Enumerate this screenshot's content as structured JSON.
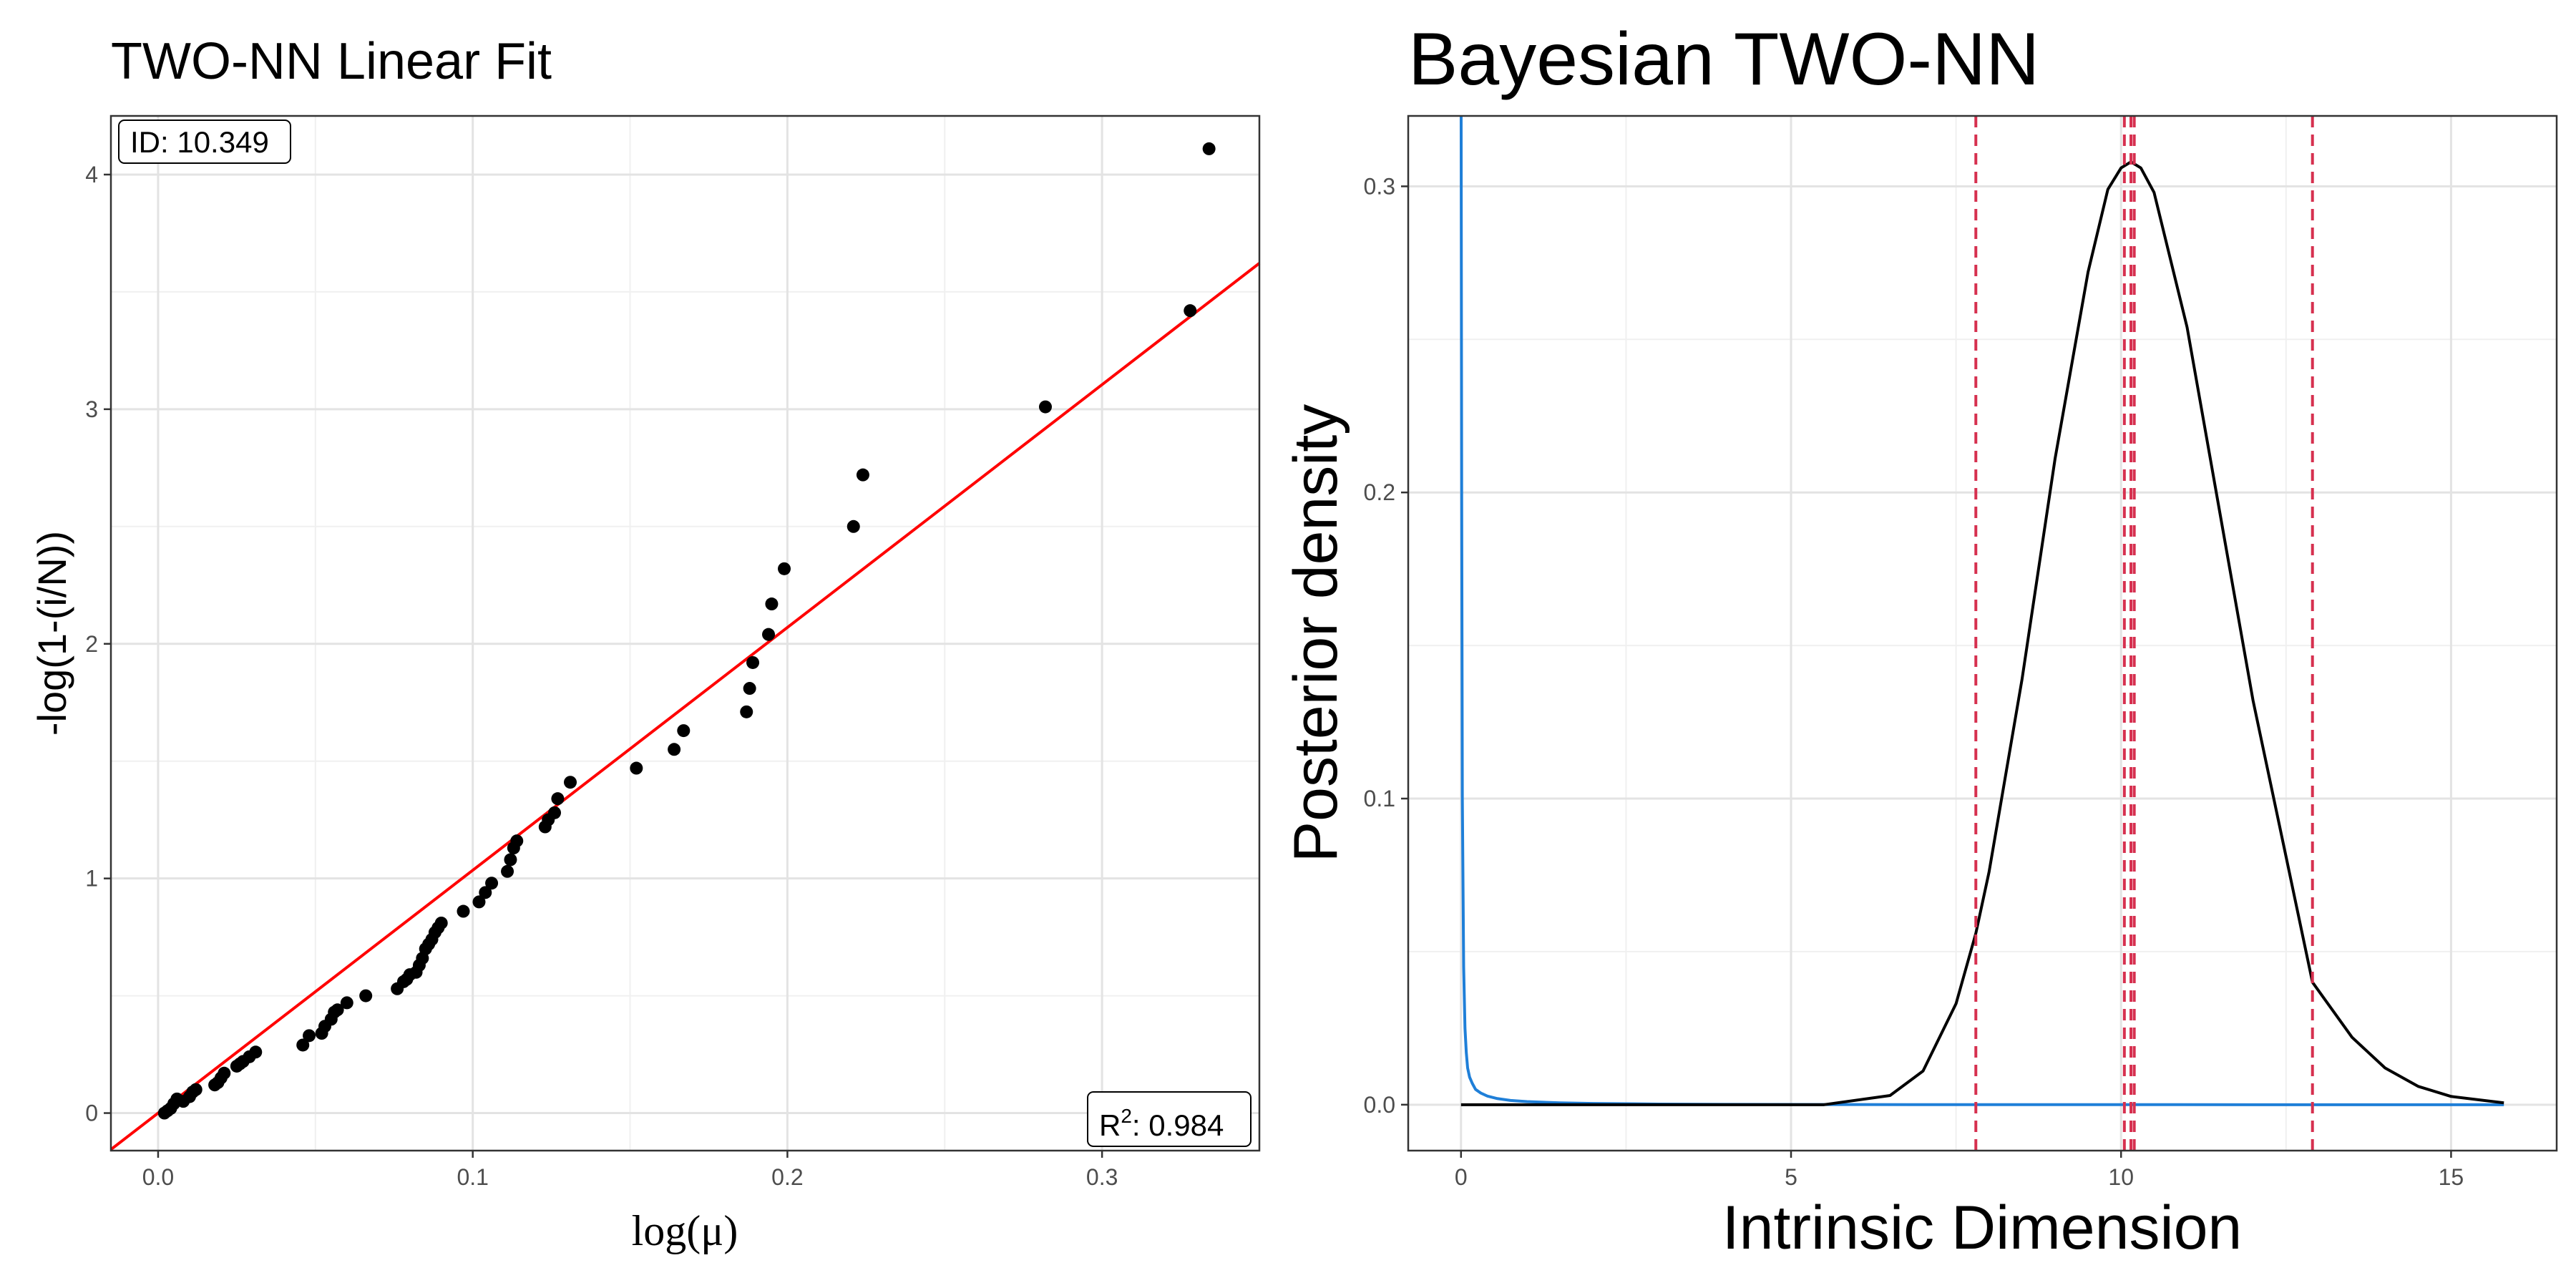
{
  "chart_data": [
    {
      "type": "scatter",
      "title": "TWO-NN Linear Fit",
      "xlabel": "log(μ)",
      "ylabel": "-log(1-(i/N))",
      "xlim": [
        -0.015,
        0.35
      ],
      "ylim": [
        -0.16,
        4.25
      ],
      "xticks": [
        0.0,
        0.1,
        0.2,
        0.3
      ],
      "xtick_labels": [
        "0.0",
        "0.1",
        "0.2",
        "0.3"
      ],
      "yticks": [
        0,
        1,
        2,
        3,
        4
      ],
      "ytick_labels": [
        "0",
        "1",
        "2",
        "3",
        "4"
      ],
      "grid": true,
      "points_color": "#000000",
      "line_color": "#ff0000",
      "fit_line": {
        "slope": 10.349,
        "intercept": 0.0
      },
      "id_label": "ID: 10.349",
      "r2_label_prefix": "R",
      "r2_label_sup": "2",
      "r2_label_value": ": 0.984",
      "points": [
        [
          0.002,
          0.0
        ],
        [
          0.003,
          0.01
        ],
        [
          0.004,
          0.02
        ],
        [
          0.005,
          0.04
        ],
        [
          0.006,
          0.06
        ],
        [
          0.008,
          0.05
        ],
        [
          0.01,
          0.07
        ],
        [
          0.011,
          0.09
        ],
        [
          0.012,
          0.1
        ],
        [
          0.018,
          0.12
        ],
        [
          0.019,
          0.13
        ],
        [
          0.02,
          0.15
        ],
        [
          0.021,
          0.17
        ],
        [
          0.025,
          0.2
        ],
        [
          0.026,
          0.21
        ],
        [
          0.027,
          0.22
        ],
        [
          0.029,
          0.24
        ],
        [
          0.031,
          0.26
        ],
        [
          0.046,
          0.29
        ],
        [
          0.048,
          0.33
        ],
        [
          0.052,
          0.34
        ],
        [
          0.053,
          0.37
        ],
        [
          0.055,
          0.4
        ],
        [
          0.056,
          0.43
        ],
        [
          0.057,
          0.44
        ],
        [
          0.06,
          0.47
        ],
        [
          0.066,
          0.5
        ],
        [
          0.076,
          0.53
        ],
        [
          0.078,
          0.56
        ],
        [
          0.079,
          0.57
        ],
        [
          0.08,
          0.59
        ],
        [
          0.082,
          0.6
        ],
        [
          0.083,
          0.63
        ],
        [
          0.084,
          0.66
        ],
        [
          0.085,
          0.7
        ],
        [
          0.086,
          0.72
        ],
        [
          0.087,
          0.74
        ],
        [
          0.088,
          0.77
        ],
        [
          0.089,
          0.79
        ],
        [
          0.09,
          0.81
        ],
        [
          0.097,
          0.86
        ],
        [
          0.102,
          0.9
        ],
        [
          0.104,
          0.94
        ],
        [
          0.106,
          0.98
        ],
        [
          0.111,
          1.03
        ],
        [
          0.112,
          1.08
        ],
        [
          0.113,
          1.13
        ],
        [
          0.114,
          1.16
        ],
        [
          0.123,
          1.22
        ],
        [
          0.124,
          1.25
        ],
        [
          0.126,
          1.28
        ],
        [
          0.127,
          1.34
        ],
        [
          0.131,
          1.41
        ],
        [
          0.152,
          1.47
        ],
        [
          0.164,
          1.55
        ],
        [
          0.167,
          1.63
        ],
        [
          0.187,
          1.71
        ],
        [
          0.188,
          1.81
        ],
        [
          0.189,
          1.92
        ],
        [
          0.194,
          2.04
        ],
        [
          0.195,
          2.17
        ],
        [
          0.199,
          2.32
        ],
        [
          0.221,
          2.5
        ],
        [
          0.224,
          2.72
        ],
        [
          0.282,
          3.01
        ],
        [
          0.328,
          3.42
        ],
        [
          0.334,
          4.11
        ]
      ]
    },
    {
      "type": "line",
      "title": "Bayesian TWO-NN",
      "xlabel": "Intrinsic Dimension",
      "ylabel": "Posterior density",
      "xlim": [
        -0.8,
        16.6
      ],
      "ylim": [
        -0.015,
        0.323
      ],
      "xticks": [
        0,
        5,
        10,
        15
      ],
      "xtick_labels": [
        "0",
        "5",
        "10",
        "15"
      ],
      "yticks": [
        0.0,
        0.1,
        0.2,
        0.3
      ],
      "ytick_labels": [
        "0.0",
        "0.1",
        "0.2",
        "0.3"
      ],
      "grid": true,
      "series": [
        {
          "color": "#1f7fd8",
          "x": [
            0.0,
            0.01,
            0.02,
            0.04,
            0.06,
            0.08,
            0.1,
            0.13,
            0.17,
            0.22,
            0.3,
            0.4,
            0.55,
            0.75,
            1.0,
            1.5,
            2.0,
            3.0,
            4.0,
            6.0,
            8.0,
            10.0,
            12.0,
            14.0,
            15.8
          ],
          "y": [
            0.35,
            0.2,
            0.1,
            0.045,
            0.025,
            0.017,
            0.012,
            0.009,
            0.007,
            0.005,
            0.0038,
            0.0028,
            0.002,
            0.0014,
            0.001,
            0.0006,
            0.0004,
            0.0002,
            0.0001,
            4e-05,
            2e-05,
            1e-05,
            0.0,
            0.0,
            0.0
          ]
        },
        {
          "color": "#000000",
          "x": [
            0.0,
            5.5,
            6.5,
            7.0,
            7.5,
            7.8,
            8.0,
            8.5,
            9.0,
            9.5,
            9.8,
            10.0,
            10.15,
            10.3,
            10.5,
            11.0,
            11.5,
            12.0,
            12.5,
            12.9,
            13.5,
            14.0,
            14.5,
            15.0,
            15.8
          ],
          "y": [
            0.0,
            0.0,
            0.003,
            0.011,
            0.033,
            0.056,
            0.076,
            0.139,
            0.211,
            0.272,
            0.299,
            0.306,
            0.308,
            0.306,
            0.298,
            0.254,
            0.193,
            0.132,
            0.081,
            0.04,
            0.022,
            0.012,
            0.006,
            0.0027,
            0.0006
          ]
        }
      ],
      "vlines": {
        "color": "#d6304f",
        "x": [
          7.8,
          10.05,
          10.15,
          10.2,
          12.9
        ]
      }
    }
  ]
}
